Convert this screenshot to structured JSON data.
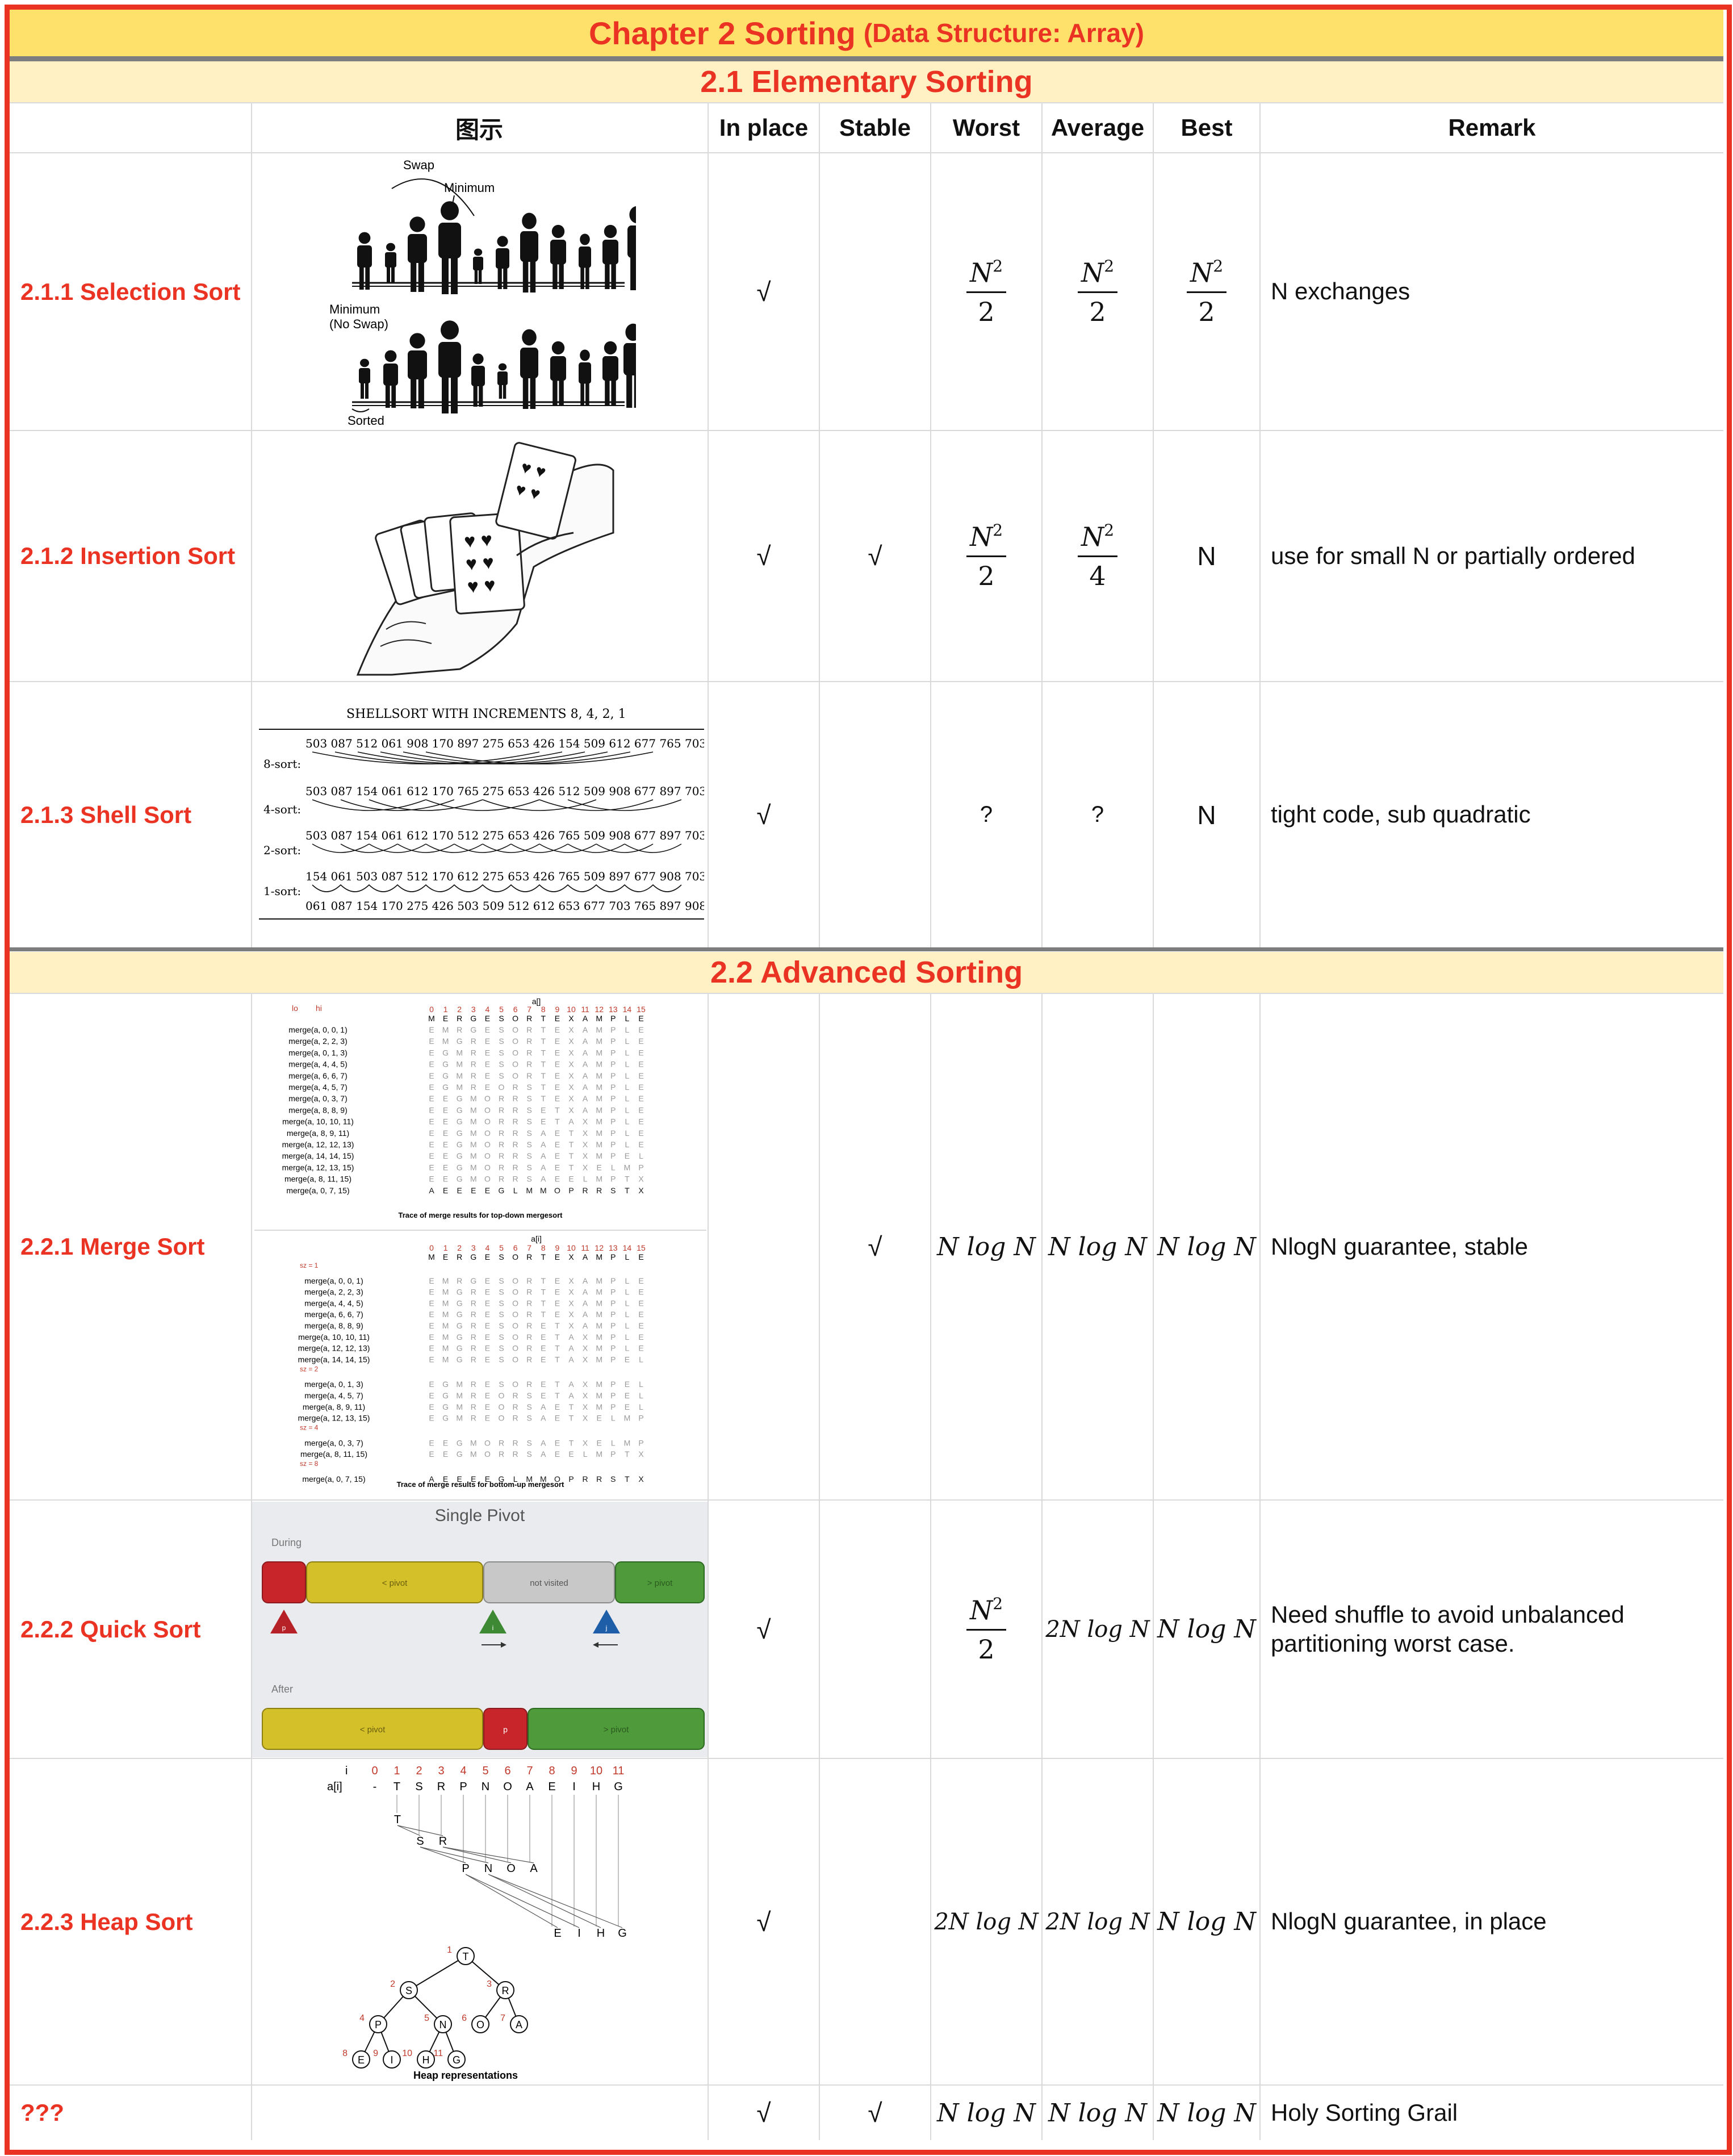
{
  "title": {
    "main": "Chapter 2 Sorting",
    "sub": "(Data Structure: Array)"
  },
  "sections": {
    "elementary": "2.1 Elementary Sorting",
    "advanced": "2.2 Advanced Sorting"
  },
  "headers": {
    "figure": "图示",
    "inplace": "In place",
    "stable": "Stable",
    "worst": "Worst",
    "average": "Average",
    "best": "Best",
    "remark": "Remark"
  },
  "rows": [
    {
      "name": "2.1.1 Selection Sort",
      "inplace": "√",
      "stable": "",
      "worst": {
        "num": "N",
        "exp": "2",
        "den": "2"
      },
      "average": {
        "num": "N",
        "exp": "2",
        "den": "2"
      },
      "best": {
        "num": "N",
        "exp": "2",
        "den": "2"
      },
      "remark": "N exchanges"
    },
    {
      "name": "2.1.2 Insertion Sort",
      "inplace": "√",
      "stable": "√",
      "worst": {
        "num": "N",
        "exp": "2",
        "den": "2"
      },
      "average": {
        "num": "N",
        "exp": "2",
        "den": "4"
      },
      "best": "N",
      "remark": "use for small N or partially ordered"
    },
    {
      "name": "2.1.3 Shell Sort",
      "inplace": "√",
      "stable": "",
      "worst": "?",
      "average": "?",
      "best": "N",
      "remark": "tight code, sub quadratic"
    },
    {
      "name": "2.2.1 Merge Sort",
      "inplace": "",
      "stable": "√",
      "worst": "N log N",
      "average": "N log N",
      "best": "N log N",
      "remark": "NlogN guarantee, stable"
    },
    {
      "name": "2.2.2 Quick Sort",
      "inplace": "√",
      "stable": "",
      "worst": {
        "num": "N",
        "exp": "2",
        "den": "2"
      },
      "average": "2N log N",
      "best": "N log N",
      "remark": "Need shuffle to avoid unbalanced partitioning worst case."
    },
    {
      "name": "2.2.3 Heap Sort",
      "inplace": "√",
      "stable": "",
      "worst": "2N log N",
      "average": "2N log N",
      "best": "N log N",
      "remark": "NlogN guarantee, in place"
    },
    {
      "name": "???",
      "inplace": "√",
      "stable": "√",
      "worst": "N log N",
      "average": "N log N",
      "best": "N log N",
      "remark": "Holy Sorting Grail"
    }
  ],
  "figures": {
    "selection": {
      "swap": "Swap",
      "minimum": "Minimum",
      "minimum_noswap_1": "Minimum",
      "minimum_noswap_2": "(No Swap)",
      "sorted": "Sorted"
    },
    "shell": {
      "title": "SHELLSORT WITH INCREMENTS 8, 4, 2, 1",
      "lines": [
        "503 087 512 061 908 170 897 275 653 426 154 509 612 677 765 703",
        "503 087 154 061 612 170 765 275 653 426 512 509 908 677 897 703",
        "503 087 154 061 612 170 512 275 653 426 765 509 908 677 897 703",
        "154 061 503 087 512 170 612 275 653 426 765 509 897 677 908 703",
        "061 087 154 170 275 426 503 509 512 612 653 677 703 765 897 908"
      ],
      "labels": [
        "8-sort:",
        "4-sort:",
        "2-sort:",
        "1-sort:"
      ]
    },
    "merge_top": {
      "array_label": "a[]",
      "lo": "lo",
      "hi": "hi",
      "indices": "0 1 2 3 4 5 6 7 8 9 10 11 12 13 14 15",
      "calls": [
        "merge(a,  0,  0,  1)",
        "merge(a,  2,  2,  3)",
        "merge(a,  0,  1,  3)",
        "merge(a,  4,  4,  5)",
        "merge(a,  6,  6,  7)",
        "merge(a,  4,  5,  7)",
        "merge(a,  0,  3,  7)",
        "merge(a,  8,  8,  9)",
        "merge(a, 10, 10, 11)",
        "merge(a,  8,  9, 11)",
        "merge(a, 12, 12, 13)",
        "merge(a, 14, 14, 15)",
        "merge(a, 12, 13, 15)",
        "merge(a,  8, 11, 15)",
        "merge(a,  0,  7, 15)"
      ],
      "initial": "M E R G E S O R T E X A M P L E",
      "rows": [
        "E M R G E S O R T E X A M P L E",
        "E M G R E S O R T E X A M P L E",
        "E G M R E S O R T E X A M P L E",
        "E G M R E S O R T E X A M P L E",
        "E G M R E S O R T E X A M P L E",
        "E G M R E O R S T E X A M P L E",
        "E E G M O R R S T E X A M P L E",
        "E E G M O R R S E T X A M P L E",
        "E E G M O R R S E T A X M P L E",
        "E E G M O R R S A E T X M P L E",
        "E E G M O R R S A E T X M P L E",
        "E E G M O R R S A E T X M P E L",
        "E E G M O R R S A E T X E L M P",
        "E E G M O R R S A E E L M P T X",
        "A E E E E G L M M O P R R S T X"
      ],
      "caption": "Trace of merge results for top-down mergesort"
    },
    "merge_bottom": {
      "array_label": "a[i]",
      "indices": "0 1 2 3 4 5 6 7 8 9 10 11 12 13 14 15",
      "initial": "M E R G E S O R T E X A M P L E",
      "sz": [
        "sz = 1",
        "sz = 2",
        "sz = 4",
        "sz = 8"
      ],
      "calls1": [
        "merge(a,  0,  0,  1)",
        "merge(a,  2,  2,  3)",
        "merge(a,  4,  4,  5)",
        "merge(a,  6,  6,  7)",
        "merge(a,  8,  8,  9)",
        "merge(a, 10, 10, 11)",
        "merge(a, 12, 12, 13)",
        "merge(a, 14, 14, 15)"
      ],
      "rows1": [
        "E M R G E S O R T E X A M P L E",
        "E M G R E S O R T E X A M P L E",
        "E M G R E S O R T E X A M P L E",
        "E M G R E S O R T E X A M P L E",
        "E M G R E S O R E T X A M P L E",
        "E M G R E S O R E T A X M P L E",
        "E M G R E S O R E T A X M P L E",
        "E M G R E S O R E T A X M P E L"
      ],
      "calls2": [
        "merge(a,  0,  1,  3)",
        "merge(a,  4,  5,  7)",
        "merge(a,  8,  9, 11)",
        "merge(a, 12, 13, 15)"
      ],
      "rows2": [
        "E G M R E S O R E T A X M P E L",
        "E G M R E O R S E T A X M P E L",
        "E G M R E O R S A E T X M P E L",
        "E G M R E O R S A E T X E L M P"
      ],
      "calls3": [
        "merge(a,  0,  3,  7)",
        "merge(a,  8, 11, 15)"
      ],
      "rows3": [
        "E E G M O R R S A E T X E L M P",
        "E E G M O R R S A E E L M P T X"
      ],
      "calls4": [
        "merge(a,  0,  7, 15)"
      ],
      "rows4": [
        "A E E E E G L M M O P R R S T X"
      ],
      "caption": "Trace of merge results for bottom-up mergesort"
    },
    "quick": {
      "title": "Single Pivot",
      "during": "During",
      "after": "After",
      "lt_pivot": "< pivot",
      "not_visited": "not visited",
      "gt_pivot": "> pivot",
      "p": "p",
      "i": "i",
      "j": "j"
    },
    "heap": {
      "i_label": "i",
      "a_label": "a[i]",
      "indices": [
        "0",
        "1",
        "2",
        "3",
        "4",
        "5",
        "6",
        "7",
        "8",
        "9",
        "10",
        "11"
      ],
      "values": [
        "-",
        "T",
        "S",
        "R",
        "P",
        "N",
        "O",
        "A",
        "E",
        "I",
        "H",
        "G"
      ],
      "caption": "Heap representations"
    }
  }
}
